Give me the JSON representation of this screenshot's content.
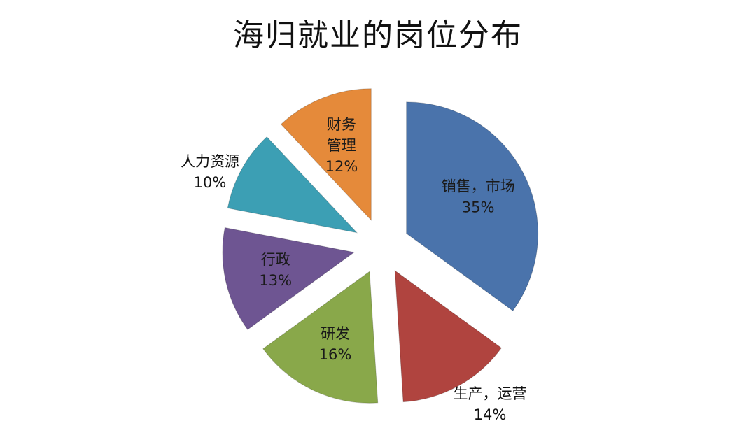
{
  "chart_data": {
    "type": "pie",
    "title": "海归就业的岗位分布",
    "exploded": true,
    "slices": [
      {
        "name": "销售，市场",
        "percent_label": "35%",
        "value": 35,
        "color": "#4a73ab",
        "name_lines": [
          "销售，市场"
        ],
        "label_placement": "inside"
      },
      {
        "name": "生产，运营",
        "percent_label": "14%",
        "value": 14,
        "color": "#b0443f",
        "name_lines": [
          "生产，运营"
        ],
        "label_placement": "outside"
      },
      {
        "name": "研发",
        "percent_label": "16%",
        "value": 16,
        "color": "#89a84a",
        "name_lines": [
          "研发"
        ],
        "label_placement": "inside"
      },
      {
        "name": "行政",
        "percent_label": "13%",
        "value": 13,
        "color": "#6e5592",
        "name_lines": [
          "行政"
        ],
        "label_placement": "inside"
      },
      {
        "name": "人力资源",
        "percent_label": "10%",
        "value": 10,
        "color": "#3c9fb4",
        "name_lines": [
          "人力资源"
        ],
        "label_placement": "outside"
      },
      {
        "name": "财务管理",
        "percent_label": "12%",
        "value": 12,
        "color": "#e58a3a",
        "name_lines": [
          "财务",
          "管理"
        ],
        "label_placement": "inside"
      }
    ]
  }
}
